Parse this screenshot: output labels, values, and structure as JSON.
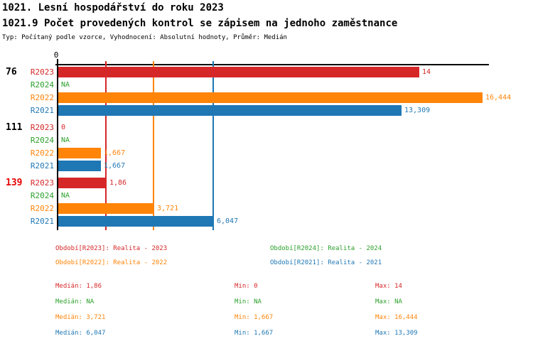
{
  "header": {
    "title": "1021. Lesní hospodářství do roku 2023",
    "subtitle": "1021.9 Počet provedených kontrol se zápisem na jednoho zaměstnance",
    "meta": "Typ: Počítaný podle vzorce, Vyhodnocení: Absolutní hodnoty, Průměr: Medián"
  },
  "colors": {
    "r2023": "#d62728",
    "r2024": "#2ca02c",
    "r2022": "#ff8408",
    "r2021": "#1f77b4",
    "highlight": "#e60000",
    "axis": "#000000"
  },
  "chart_data": {
    "type": "bar",
    "orientation": "horizontal",
    "title": "1021.9 Počet provedených kontrol se zápisem na jednoho zaměstnance",
    "axis": {
      "min": 0,
      "max": 16.67,
      "zero_label": "0",
      "grid": false
    },
    "series_labels": {
      "r2023": "R2023",
      "r2024": "R2024",
      "r2022": "R2022",
      "r2021": "R2021"
    },
    "groups": [
      {
        "id": "76",
        "highlight": false,
        "rows": [
          {
            "series": "r2023",
            "value": 14,
            "label": "14"
          },
          {
            "series": "r2024",
            "value": null,
            "label": "NA"
          },
          {
            "series": "r2022",
            "value": 16.444,
            "label": "16,444"
          },
          {
            "series": "r2021",
            "value": 13.309,
            "label": "13,309"
          }
        ]
      },
      {
        "id": "111",
        "highlight": false,
        "rows": [
          {
            "series": "r2023",
            "value": 0,
            "label": "0"
          },
          {
            "series": "r2024",
            "value": null,
            "label": "NA"
          },
          {
            "series": "r2022",
            "value": 1.667,
            "label": "1,667"
          },
          {
            "series": "r2021",
            "value": 1.667,
            "label": "1,667"
          }
        ]
      },
      {
        "id": "139",
        "highlight": true,
        "rows": [
          {
            "series": "r2023",
            "value": 1.86,
            "label": "1,86"
          },
          {
            "series": "r2024",
            "value": null,
            "label": "NA"
          },
          {
            "series": "r2022",
            "value": 3.721,
            "label": "3,721"
          },
          {
            "series": "r2021",
            "value": 6.047,
            "label": "6,047"
          }
        ]
      }
    ],
    "median_lines": [
      {
        "series": "r2023",
        "value": 1.86
      },
      {
        "series": "r2022",
        "value": 3.721
      },
      {
        "series": "r2021",
        "value": 6.047
      }
    ]
  },
  "legend": {
    "items": [
      {
        "series": "r2023",
        "label": "Období[R2023]: Realita - 2023"
      },
      {
        "series": "r2024",
        "label": "Období[R2024]: Realita - 2024"
      },
      {
        "series": "r2022",
        "label": "Období[R2022]: Realita - 2022"
      },
      {
        "series": "r2021",
        "label": "Období[R2021]: Realita - 2021"
      }
    ]
  },
  "stats": {
    "rows": [
      {
        "series": "r2023",
        "median": "Medián: 1,86",
        "min": "Min: 0",
        "max": "Max: 14"
      },
      {
        "series": "r2024",
        "median": "Medián: NA",
        "min": "Min: NA",
        "max": "Max: NA"
      },
      {
        "series": "r2022",
        "median": "Medián: 3,721",
        "min": "Min: 1,667",
        "max": "Max: 16,444"
      },
      {
        "series": "r2021",
        "median": "Medián: 6,047",
        "min": "Min: 1,667",
        "max": "Max: 13,309"
      }
    ]
  }
}
